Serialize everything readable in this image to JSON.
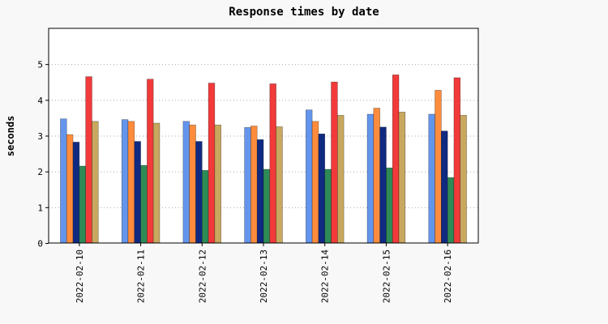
{
  "chart_data": {
    "type": "bar",
    "title": "Response times by date",
    "xlabel": "",
    "ylabel": "seconds",
    "ylim": [
      0,
      6
    ],
    "yticks": [
      0,
      1,
      2,
      3,
      4,
      5
    ],
    "grid": "horizontal dotted",
    "legend": "none",
    "categories": [
      "2022-02-10",
      "2022-02-11",
      "2022-02-12",
      "2022-02-13",
      "2022-02-14",
      "2022-02-15",
      "2022-02-16"
    ],
    "series": [
      {
        "color": "#6495ed",
        "values": [
          3.47,
          3.45,
          3.4,
          3.23,
          3.72,
          3.6,
          3.6
        ]
      },
      {
        "color": "#ff8c3c",
        "values": [
          3.03,
          3.4,
          3.3,
          3.27,
          3.4,
          3.77,
          4.27
        ]
      },
      {
        "color": "#102a82",
        "values": [
          2.82,
          2.84,
          2.84,
          2.89,
          3.05,
          3.24,
          3.13
        ]
      },
      {
        "color": "#2e8b57",
        "values": [
          2.15,
          2.17,
          2.03,
          2.06,
          2.06,
          2.1,
          1.83
        ]
      },
      {
        "color": "#f23a3a",
        "values": [
          4.65,
          4.58,
          4.47,
          4.45,
          4.5,
          4.7,
          4.62
        ]
      },
      {
        "color": "#c8a85e",
        "values": [
          3.4,
          3.35,
          3.3,
          3.25,
          3.57,
          3.66,
          3.57
        ]
      }
    ]
  }
}
